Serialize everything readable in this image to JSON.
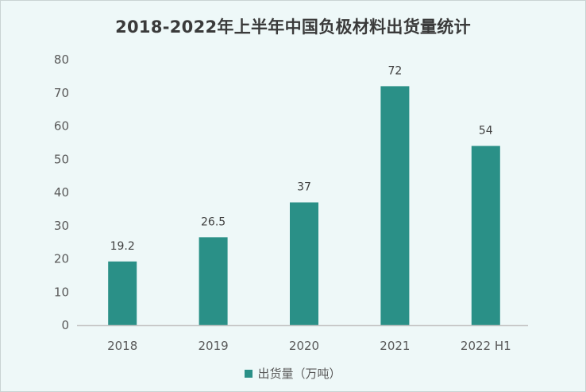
{
  "chart_data": {
    "type": "bar",
    "title": "2018-2022年上半年中国负极材料出货量统计",
    "categories": [
      "2018",
      "2019",
      "2020",
      "2021",
      "2022 H1"
    ],
    "series": [
      {
        "name": "出货量（万吨）",
        "values": [
          19.2,
          26.5,
          37,
          72,
          54
        ],
        "labels": [
          "19.2",
          "26.5",
          "37",
          "72",
          "54"
        ],
        "color": "#2a9087"
      }
    ],
    "xlabel": "",
    "ylabel": "",
    "ylim": [
      0,
      80
    ],
    "yticks": [
      0,
      10,
      20,
      30,
      40,
      50,
      60,
      70,
      80
    ],
    "grid": false,
    "legend": "bottom"
  }
}
